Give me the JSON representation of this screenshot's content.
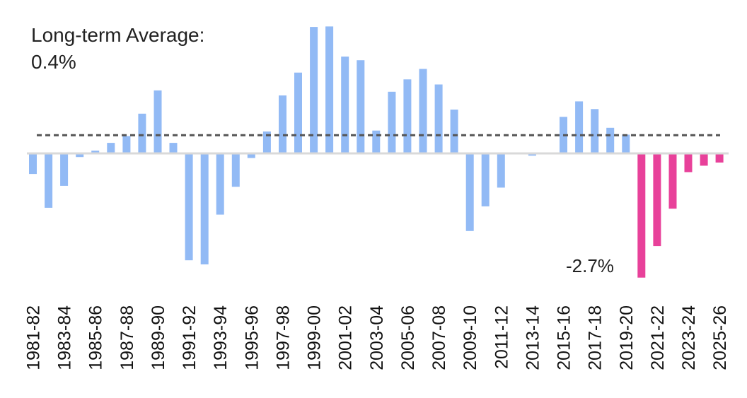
{
  "chart_data": {
    "type": "bar",
    "title": "",
    "xlabel": "",
    "ylabel": "",
    "annotation": {
      "line1": "Long-term Average:",
      "line2": "0.4%"
    },
    "min_label": "-2.7%",
    "long_term_average": 0.4,
    "ylim": [
      -2.8,
      2.9
    ],
    "grid": false,
    "colors": {
      "historical": "#92baf5",
      "forecast": "#e8419a",
      "average_line": "#555555",
      "zero_line": "#d9d9d9"
    },
    "categories": [
      "1981-82",
      "1982-83",
      "1983-84",
      "1984-85",
      "1985-86",
      "1986-87",
      "1987-88",
      "1988-89",
      "1989-90",
      "1990-91",
      "1991-92",
      "1992-93",
      "1993-94",
      "1994-95",
      "1995-96",
      "1996-97",
      "1997-98",
      "1998-99",
      "1999-00",
      "2000-01",
      "2001-02",
      "2002-03",
      "2003-04",
      "2004-05",
      "2005-06",
      "2006-07",
      "2007-08",
      "2008-09",
      "2009-10",
      "2010-11",
      "2011-12",
      "2012-13",
      "2013-14",
      "2014-15",
      "2015-16",
      "2016-17",
      "2017-18",
      "2018-19",
      "2019-20",
      "2020-21",
      "2021-22",
      "2022-23",
      "2023-24",
      "2024-25",
      "2025-26"
    ],
    "tick_labels": [
      "1981-82",
      "1983-84",
      "1985-86",
      "1987-88",
      "1989-90",
      "1991-92",
      "1993-94",
      "1995-96",
      "1997-98",
      "1999-00",
      "2001-02",
      "2003-04",
      "2005-06",
      "2007-08",
      "2009-10",
      "2011-12",
      "2013-14",
      "2015-16",
      "2017-18",
      "2019-20",
      "2021-22",
      "2023-24",
      "2025-26"
    ],
    "series": [
      {
        "values": [
          -0.45,
          -1.19,
          -0.71,
          -0.08,
          0.06,
          0.23,
          0.38,
          0.87,
          1.38,
          0.23,
          -2.34,
          -2.43,
          -1.34,
          -0.73,
          -0.1,
          0.48,
          1.27,
          1.77,
          2.77,
          2.78,
          2.12,
          2.04,
          0.5,
          1.35,
          1.62,
          1.85,
          1.51,
          0.96,
          -1.7,
          -1.16,
          -0.75,
          0.01,
          -0.05,
          0.02,
          0.8,
          1.14,
          0.97,
          0.56,
          0.41,
          null,
          null,
          null,
          null,
          null,
          null
        ]
      },
      {
        "values": [
          null,
          null,
          null,
          null,
          null,
          null,
          null,
          null,
          null,
          null,
          null,
          null,
          null,
          null,
          null,
          null,
          null,
          null,
          null,
          null,
          null,
          null,
          null,
          null,
          null,
          null,
          null,
          null,
          null,
          null,
          null,
          null,
          null,
          null,
          null,
          null,
          null,
          null,
          null,
          -2.72,
          -2.03,
          -1.21,
          -0.41,
          -0.27,
          -0.2
        ]
      }
    ]
  }
}
